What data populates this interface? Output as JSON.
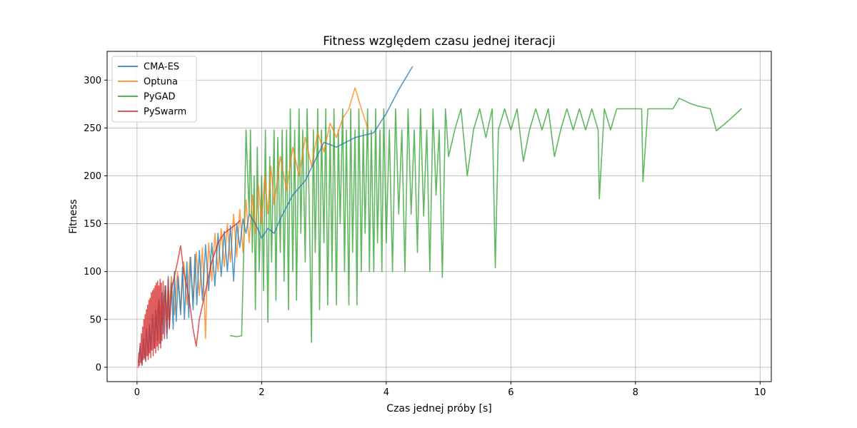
{
  "chart_data": {
    "type": "line",
    "title": "Fitness względem czasu jednej iteracji",
    "xlabel": "Czas jednej próby [s]",
    "ylabel": "Fitness",
    "xlim": [
      -0.48,
      10.18
    ],
    "ylim": [
      -15,
      330
    ],
    "xticks": [
      0,
      2,
      4,
      6,
      8,
      10
    ],
    "yticks": [
      0,
      50,
      100,
      150,
      200,
      250,
      300
    ],
    "grid": true,
    "legend_position": "upper-left",
    "series": [
      {
        "name": "CMA-ES",
        "color": "#1f77b4",
        "points": [
          [
            0.02,
            5
          ],
          [
            0.05,
            22
          ],
          [
            0.08,
            2
          ],
          [
            0.1,
            30
          ],
          [
            0.13,
            8
          ],
          [
            0.15,
            40
          ],
          [
            0.18,
            12
          ],
          [
            0.2,
            45
          ],
          [
            0.22,
            18
          ],
          [
            0.25,
            55
          ],
          [
            0.28,
            20
          ],
          [
            0.3,
            60
          ],
          [
            0.33,
            28
          ],
          [
            0.35,
            70
          ],
          [
            0.38,
            25
          ],
          [
            0.4,
            78
          ],
          [
            0.42,
            35
          ],
          [
            0.45,
            85
          ],
          [
            0.48,
            30
          ],
          [
            0.5,
            95
          ],
          [
            0.52,
            42
          ],
          [
            0.55,
            88
          ],
          [
            0.58,
            40
          ],
          [
            0.6,
            100
          ],
          [
            0.63,
            48
          ],
          [
            0.66,
            95
          ],
          [
            0.7,
            55
          ],
          [
            0.73,
            105
          ],
          [
            0.76,
            50
          ],
          [
            0.8,
            110
          ],
          [
            0.83,
            52
          ],
          [
            0.86,
            115
          ],
          [
            0.9,
            60
          ],
          [
            0.93,
            118
          ],
          [
            0.96,
            65
          ],
          [
            1.0,
            122
          ],
          [
            1.05,
            70
          ],
          [
            1.1,
            128
          ],
          [
            1.15,
            80
          ],
          [
            1.2,
            130
          ],
          [
            1.25,
            85
          ],
          [
            1.3,
            140
          ],
          [
            1.35,
            95
          ],
          [
            1.4,
            142
          ],
          [
            1.45,
            100
          ],
          [
            1.5,
            148
          ],
          [
            1.55,
            90
          ],
          [
            1.6,
            150
          ],
          [
            1.65,
            125
          ],
          [
            1.7,
            155
          ],
          [
            1.75,
            140
          ],
          [
            1.8,
            160
          ],
          [
            1.9,
            150
          ],
          [
            2.0,
            135
          ],
          [
            2.1,
            145
          ],
          [
            2.2,
            140
          ],
          [
            2.3,
            155
          ],
          [
            2.5,
            180
          ],
          [
            2.7,
            195
          ],
          [
            3.0,
            235
          ],
          [
            3.2,
            230
          ],
          [
            3.5,
            240
          ],
          [
            3.8,
            245
          ],
          [
            4.0,
            265
          ],
          [
            4.2,
            290
          ],
          [
            4.42,
            314
          ]
        ]
      },
      {
        "name": "Optuna",
        "color": "#ff7f0e",
        "points": [
          [
            0.3,
            40
          ],
          [
            0.35,
            70
          ],
          [
            0.4,
            45
          ],
          [
            0.45,
            80
          ],
          [
            0.5,
            50
          ],
          [
            0.55,
            95
          ],
          [
            0.6,
            55
          ],
          [
            0.65,
            100
          ],
          [
            0.7,
            60
          ],
          [
            0.75,
            110
          ],
          [
            0.8,
            65
          ],
          [
            0.85,
            115
          ],
          [
            0.9,
            70
          ],
          [
            0.95,
            120
          ],
          [
            1.0,
            75
          ],
          [
            1.05,
            125
          ],
          [
            1.1,
            30
          ],
          [
            1.12,
            85
          ],
          [
            1.15,
            130
          ],
          [
            1.2,
            90
          ],
          [
            1.25,
            140
          ],
          [
            1.3,
            100
          ],
          [
            1.35,
            145
          ],
          [
            1.4,
            105
          ],
          [
            1.45,
            150
          ],
          [
            1.5,
            110
          ],
          [
            1.55,
            160
          ],
          [
            1.6,
            115
          ],
          [
            1.65,
            165
          ],
          [
            1.7,
            120
          ],
          [
            1.75,
            175
          ],
          [
            1.8,
            130
          ],
          [
            1.85,
            180
          ],
          [
            1.9,
            140
          ],
          [
            1.95,
            190
          ],
          [
            2.0,
            150
          ],
          [
            2.05,
            200
          ],
          [
            2.1,
            160
          ],
          [
            2.15,
            210
          ],
          [
            2.2,
            170
          ],
          [
            2.3,
            220
          ],
          [
            2.4,
            185
          ],
          [
            2.5,
            230
          ],
          [
            2.6,
            200
          ],
          [
            2.7,
            240
          ],
          [
            2.8,
            210
          ],
          [
            2.9,
            245
          ],
          [
            3.0,
            225
          ],
          [
            3.1,
            255
          ],
          [
            3.2,
            240
          ],
          [
            3.3,
            260
          ],
          [
            3.4,
            270
          ],
          [
            3.5,
            292
          ],
          [
            3.6,
            270
          ],
          [
            3.7,
            250
          ]
        ]
      },
      {
        "name": "PyGAD",
        "color": "#2ca02c",
        "points": [
          [
            1.5,
            33
          ],
          [
            1.6,
            32
          ],
          [
            1.68,
            33
          ],
          [
            1.72,
            140
          ],
          [
            1.75,
            248
          ],
          [
            1.8,
            160
          ],
          [
            1.82,
            248
          ],
          [
            1.85,
            120
          ],
          [
            1.88,
            200
          ],
          [
            1.9,
            60
          ],
          [
            1.93,
            230
          ],
          [
            1.96,
            100
          ],
          [
            2.0,
            200
          ],
          [
            2.03,
            80
          ],
          [
            2.06,
            248
          ],
          [
            2.1,
            47
          ],
          [
            2.13,
            220
          ],
          [
            2.16,
            110
          ],
          [
            2.2,
            248
          ],
          [
            2.23,
            70
          ],
          [
            2.26,
            240
          ],
          [
            2.3,
            120
          ],
          [
            2.33,
            248
          ],
          [
            2.36,
            90
          ],
          [
            2.4,
            248
          ],
          [
            2.43,
            60
          ],
          [
            2.46,
            270
          ],
          [
            2.5,
            100
          ],
          [
            2.53,
            248
          ],
          [
            2.56,
            70
          ],
          [
            2.6,
            270
          ],
          [
            2.63,
            140
          ],
          [
            2.66,
            248
          ],
          [
            2.7,
            110
          ],
          [
            2.73,
            270
          ],
          [
            2.76,
            180
          ],
          [
            2.8,
            26
          ],
          [
            2.83,
            248
          ],
          [
            2.86,
            120
          ],
          [
            2.9,
            270
          ],
          [
            2.93,
            60
          ],
          [
            2.96,
            248
          ],
          [
            3.0,
            130
          ],
          [
            3.03,
            270
          ],
          [
            3.06,
            65
          ],
          [
            3.1,
            248
          ],
          [
            3.13,
            100
          ],
          [
            3.16,
            270
          ],
          [
            3.2,
            65
          ],
          [
            3.23,
            248
          ],
          [
            3.26,
            150
          ],
          [
            3.3,
            270
          ],
          [
            3.33,
            100
          ],
          [
            3.36,
            248
          ],
          [
            3.4,
            65
          ],
          [
            3.43,
            270
          ],
          [
            3.46,
            120
          ],
          [
            3.5,
            248
          ],
          [
            3.53,
            65
          ],
          [
            3.56,
            270
          ],
          [
            3.6,
            100
          ],
          [
            3.63,
            248
          ],
          [
            3.66,
            140
          ],
          [
            3.7,
            270
          ],
          [
            3.73,
            100
          ],
          [
            3.76,
            248
          ],
          [
            3.8,
            100
          ],
          [
            3.83,
            270
          ],
          [
            3.86,
            130
          ],
          [
            3.9,
            248
          ],
          [
            3.93,
            100
          ],
          [
            3.96,
            270
          ],
          [
            4.0,
            130
          ],
          [
            4.05,
            248
          ],
          [
            4.1,
            100
          ],
          [
            4.15,
            270
          ],
          [
            4.2,
            160
          ],
          [
            4.25,
            248
          ],
          [
            4.3,
            100
          ],
          [
            4.35,
            270
          ],
          [
            4.4,
            160
          ],
          [
            4.45,
            248
          ],
          [
            4.5,
            120
          ],
          [
            4.55,
            270
          ],
          [
            4.6,
            158
          ],
          [
            4.65,
            248
          ],
          [
            4.7,
            100
          ],
          [
            4.75,
            270
          ],
          [
            4.8,
            180
          ],
          [
            4.85,
            248
          ],
          [
            4.9,
            94
          ],
          [
            4.95,
            270
          ],
          [
            5.0,
            220
          ],
          [
            5.1,
            248
          ],
          [
            5.2,
            270
          ],
          [
            5.3,
            200
          ],
          [
            5.4,
            248
          ],
          [
            5.5,
            270
          ],
          [
            5.6,
            240
          ],
          [
            5.7,
            270
          ],
          [
            5.75,
            104
          ],
          [
            5.8,
            248
          ],
          [
            5.9,
            270
          ],
          [
            6.0,
            248
          ],
          [
            6.1,
            270
          ],
          [
            6.2,
            215
          ],
          [
            6.3,
            248
          ],
          [
            6.4,
            270
          ],
          [
            6.5,
            248
          ],
          [
            6.6,
            270
          ],
          [
            6.7,
            220
          ],
          [
            6.8,
            248
          ],
          [
            6.9,
            270
          ],
          [
            7.0,
            248
          ],
          [
            7.1,
            270
          ],
          [
            7.2,
            248
          ],
          [
            7.3,
            270
          ],
          [
            7.4,
            248
          ],
          [
            7.42,
            176
          ],
          [
            7.5,
            270
          ],
          [
            7.6,
            248
          ],
          [
            7.7,
            270
          ],
          [
            7.8,
            270
          ],
          [
            8.0,
            270
          ],
          [
            8.1,
            270
          ],
          [
            8.12,
            194
          ],
          [
            8.2,
            270
          ],
          [
            8.4,
            270
          ],
          [
            8.5,
            270
          ],
          [
            8.6,
            270
          ],
          [
            8.7,
            281
          ],
          [
            8.9,
            275
          ],
          [
            9.0,
            273
          ],
          [
            9.2,
            270
          ],
          [
            9.3,
            247
          ],
          [
            9.5,
            258
          ],
          [
            9.7,
            270
          ]
        ]
      },
      {
        "name": "PySwarm",
        "color": "#d62728",
        "points": [
          [
            0.02,
            0
          ],
          [
            0.03,
            15
          ],
          [
            0.04,
            2
          ],
          [
            0.05,
            25
          ],
          [
            0.06,
            5
          ],
          [
            0.07,
            35
          ],
          [
            0.08,
            3
          ],
          [
            0.09,
            42
          ],
          [
            0.1,
            8
          ],
          [
            0.11,
            50
          ],
          [
            0.12,
            10
          ],
          [
            0.13,
            55
          ],
          [
            0.14,
            6
          ],
          [
            0.15,
            60
          ],
          [
            0.16,
            12
          ],
          [
            0.17,
            65
          ],
          [
            0.18,
            8
          ],
          [
            0.19,
            70
          ],
          [
            0.2,
            15
          ],
          [
            0.21,
            72
          ],
          [
            0.22,
            10
          ],
          [
            0.23,
            78
          ],
          [
            0.24,
            18
          ],
          [
            0.25,
            80
          ],
          [
            0.26,
            12
          ],
          [
            0.27,
            82
          ],
          [
            0.28,
            20
          ],
          [
            0.29,
            85
          ],
          [
            0.3,
            15
          ],
          [
            0.31,
            88
          ],
          [
            0.32,
            22
          ],
          [
            0.33,
            90
          ],
          [
            0.34,
            18
          ],
          [
            0.35,
            85
          ],
          [
            0.36,
            25
          ],
          [
            0.37,
            92
          ],
          [
            0.38,
            20
          ],
          [
            0.39,
            88
          ],
          [
            0.4,
            28
          ],
          [
            0.42,
            90
          ],
          [
            0.44,
            30
          ],
          [
            0.46,
            85
          ],
          [
            0.48,
            35
          ],
          [
            0.5,
            92
          ],
          [
            0.52,
            40
          ],
          [
            0.55,
            80
          ],
          [
            0.6,
            95
          ],
          [
            0.65,
            110
          ],
          [
            0.7,
            127
          ],
          [
            0.75,
            100
          ],
          [
            0.8,
            85
          ],
          [
            0.85,
            65
          ],
          [
            0.9,
            40
          ],
          [
            0.95,
            22
          ],
          [
            1.0,
            50
          ],
          [
            1.1,
            80
          ],
          [
            1.2,
            110
          ],
          [
            1.3,
            130
          ],
          [
            1.4,
            140
          ],
          [
            1.5,
            145
          ],
          [
            1.6,
            150
          ],
          [
            1.65,
            153
          ]
        ]
      }
    ]
  }
}
